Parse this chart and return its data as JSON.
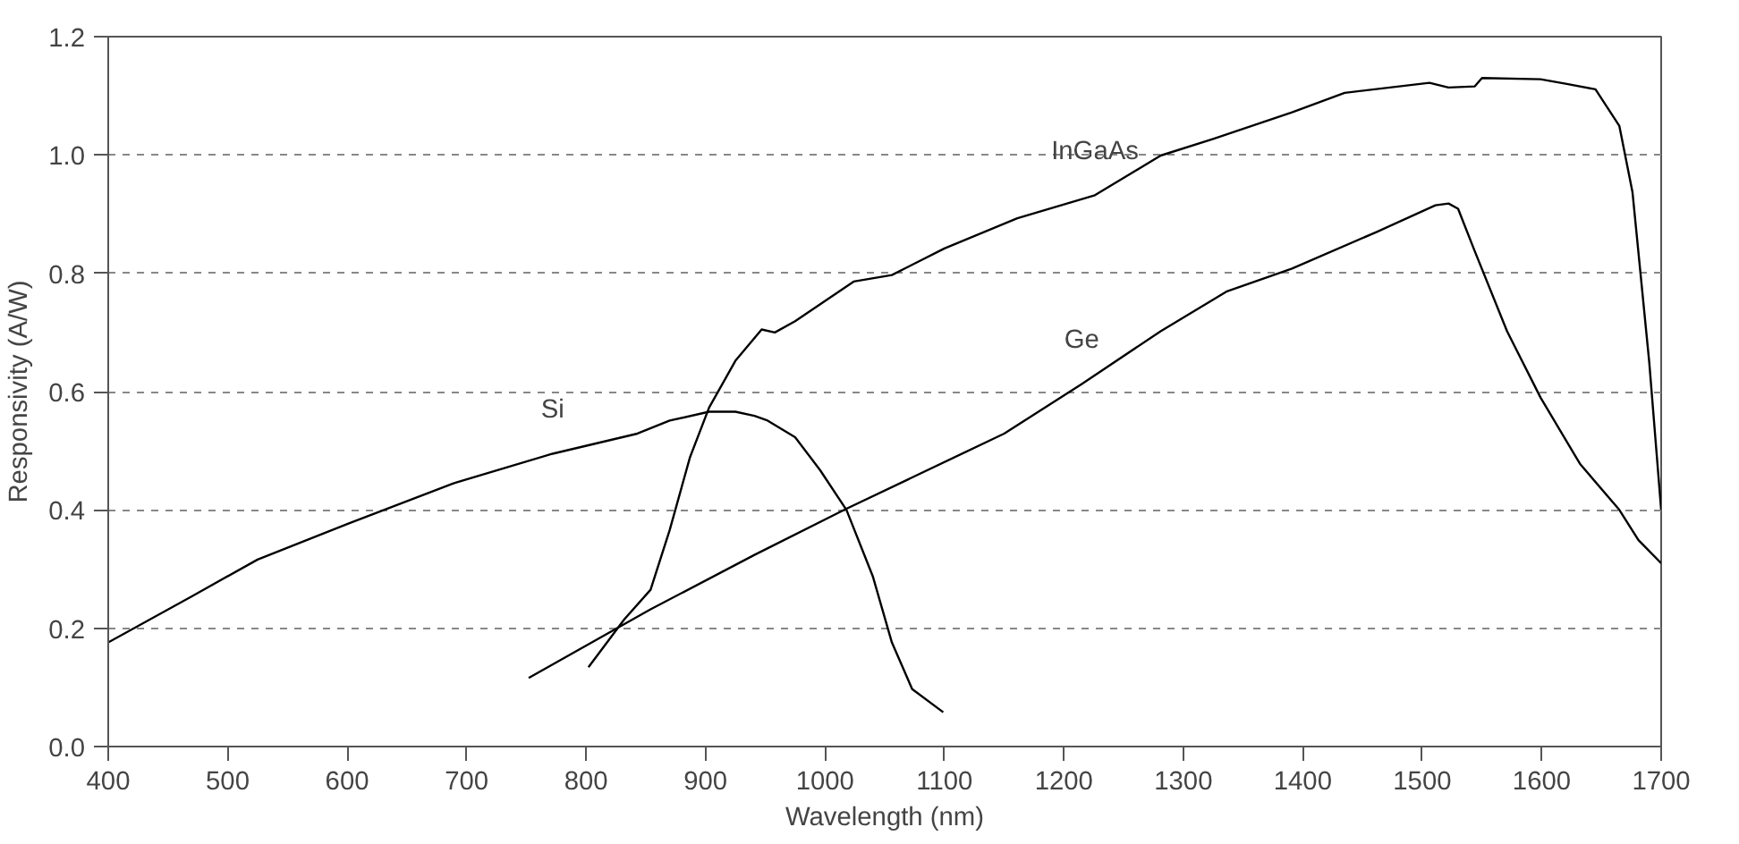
{
  "chart_data": {
    "type": "line",
    "xlabel": "Wavelength (nm)",
    "ylabel": "Responsivity (A/W)",
    "xlim": [
      400,
      1700
    ],
    "ylim": [
      0,
      1.2
    ],
    "xticks": [
      400,
      500,
      600,
      700,
      800,
      900,
      1000,
      1100,
      1200,
      1300,
      1400,
      1500,
      1600,
      1700
    ],
    "yticks": [
      {
        "value": 0,
        "label": "0.0"
      },
      0.2,
      0.4,
      0.6,
      0.8,
      {
        "value": 1,
        "label": "1.0"
      },
      1.2
    ],
    "grid": "y",
    "marker": "none",
    "line_style": "solid",
    "series": [
      {
        "name": "Si",
        "color": "#000000",
        "x": [
          400,
          470,
          525,
          601,
          689,
          772,
          843,
          870,
          903,
          925,
          941,
          952,
          975,
          996,
          1018,
          1040,
          1056,
          1073,
          1099
        ],
        "values": [
          0.176,
          0.254,
          0.316,
          0.377,
          0.445,
          0.495,
          0.529,
          0.551,
          0.566,
          0.566,
          0.559,
          0.551,
          0.523,
          0.467,
          0.4,
          0.288,
          0.176,
          0.097,
          0.058
        ]
      },
      {
        "name": "InGaAs",
        "color": "#000000",
        "x": [
          802,
          832,
          854,
          870,
          887,
          903,
          925,
          947,
          958,
          975,
          1024,
          1056,
          1100,
          1161,
          1226,
          1281,
          1325,
          1391,
          1435,
          1506,
          1522,
          1544,
          1550,
          1599,
          1621,
          1645,
          1665,
          1676,
          1690,
          1700
        ],
        "values": [
          0.134,
          0.215,
          0.265,
          0.366,
          0.489,
          0.573,
          0.652,
          0.705,
          0.7,
          0.719,
          0.786,
          0.797,
          0.842,
          0.893,
          0.932,
          0.999,
          1.027,
          1.072,
          1.105,
          1.122,
          1.114,
          1.116,
          1.13,
          1.128,
          1.12,
          1.111,
          1.049,
          0.937,
          0.65,
          0.4
        ]
      },
      {
        "name": "Ge",
        "color": "#000000",
        "x": [
          752,
          854,
          941,
          1018,
          1150,
          1215,
          1281,
          1336,
          1391,
          1462,
          1511,
          1522,
          1530,
          1544,
          1571,
          1599,
          1632,
          1665,
          1681,
          1700
        ],
        "values": [
          0.116,
          0.232,
          0.324,
          0.402,
          0.529,
          0.613,
          0.702,
          0.769,
          0.808,
          0.87,
          0.915,
          0.918,
          0.909,
          0.837,
          0.702,
          0.59,
          0.478,
          0.4,
          0.349,
          0.31
        ]
      }
    ],
    "legend": false
  }
}
